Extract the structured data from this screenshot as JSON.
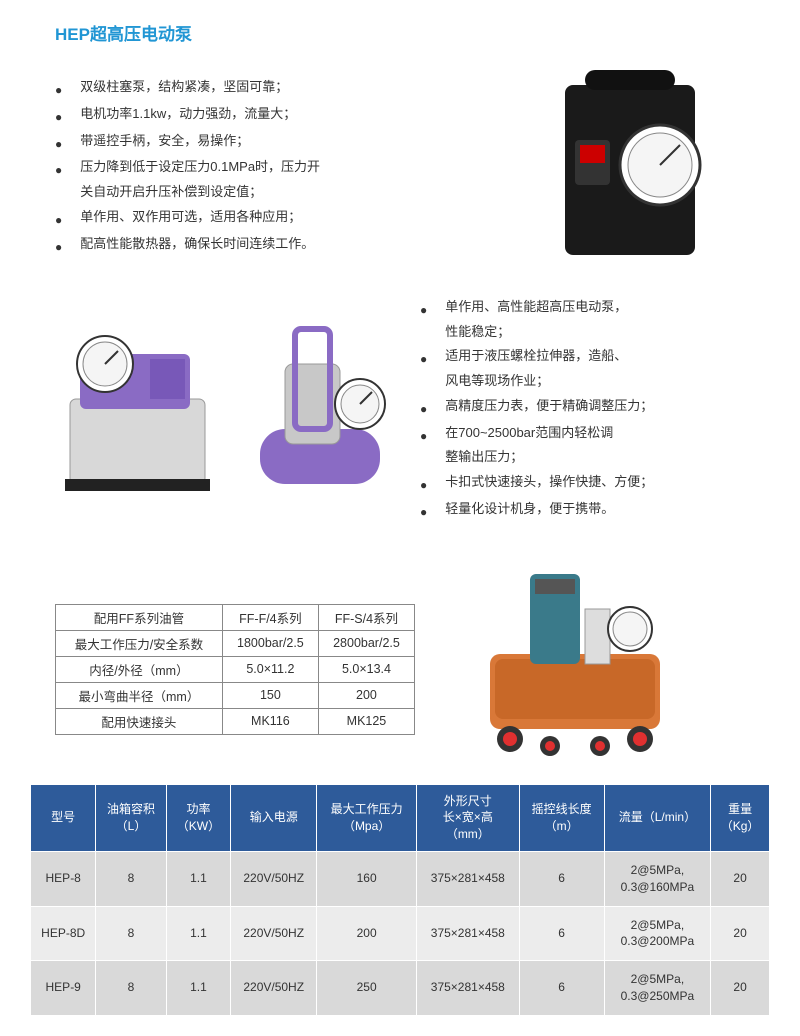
{
  "title": "HEP超高压电动泵",
  "features1": [
    "双级柱塞泵，结构紧凑，坚固可靠；",
    "电机功率1.1kw，动力强劲，流量大；",
    "带遥控手柄，安全，易操作；",
    "压力降到低于设定压力0.1MPa时，压力开\n关自动开启升压补偿到设定值；",
    "单作用、双作用可选，适用各种应用；",
    "配高性能散热器，确保长时间连续工作。"
  ],
  "features2": [
    "单作用、高性能超高压电动泵，\n性能稳定；",
    "适用于液压螺栓拉伸器，造船、\n风电等现场作业；",
    "高精度压力表，便于精确调整压力；",
    "在700~2500bar范围内轻松调\n整输出压力；",
    "卡扣式快速接头，操作快捷、方便；",
    "轻量化设计机身，便于携带。"
  ],
  "ff_table": {
    "rows": [
      [
        "配用FF系列油管",
        "FF-F/4系列",
        "FF-S/4系列"
      ],
      [
        "最大工作压力/安全系数",
        "1800bar/2.5",
        "2800bar/2.5"
      ],
      [
        "内径/外径（mm）",
        "5.0×11.2",
        "5.0×13.4"
      ],
      [
        "最小弯曲半径（mm）",
        "150",
        "200"
      ],
      [
        "配用快速接头",
        "MK116",
        "MK125"
      ]
    ]
  },
  "spec_table": {
    "headers": [
      "型号",
      "油箱容积\n（L）",
      "功率\n（KW）",
      "输入电源",
      "最大工作压力\n（Mpa）",
      "外形尺寸\n长×宽×高\n（mm）",
      "摇控线长度\n（m）",
      "流量（L/min）",
      "重量\n（Kg）"
    ],
    "rows": [
      [
        "HEP-8",
        "8",
        "1.1",
        "220V/50HZ",
        "160",
        "375×281×458",
        "6",
        "2@5MPa,\n0.3@160MPa",
        "20"
      ],
      [
        "HEP-8D",
        "8",
        "1.1",
        "220V/50HZ",
        "200",
        "375×281×458",
        "6",
        "2@5MPa,\n0.3@200MPa",
        "20"
      ],
      [
        "HEP-9",
        "8",
        "1.1",
        "220V/50HZ",
        "250",
        "375×281×458",
        "6",
        "2@5MPa,\n0.3@250MPa",
        "20"
      ]
    ],
    "header_bg": "#2e5b9a",
    "header_color": "#ffffff",
    "row_bg_odd": "#d9d9d9",
    "row_bg_even": "#ececec"
  },
  "colors": {
    "title": "#2196d4",
    "text": "#333333",
    "background": "#ffffff"
  }
}
